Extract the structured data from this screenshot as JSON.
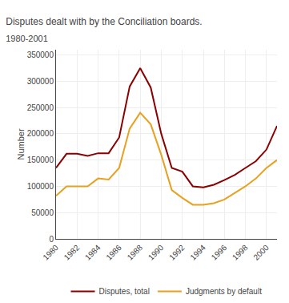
{
  "chart_data": {
    "type": "line",
    "title": "Disputes dealt with by the Conciliation boards.",
    "subtitle": "1980-2001",
    "ylabel": "Number",
    "x": [
      1980,
      1981,
      1982,
      1983,
      1984,
      1985,
      1986,
      1987,
      1988,
      1989,
      1990,
      1991,
      1992,
      1993,
      1994,
      1995,
      1996,
      1997,
      1998,
      1999,
      2000,
      2001
    ],
    "series": [
      {
        "name": "Disputes, total",
        "color": "#8B0000",
        "values": [
          135000,
          162000,
          162000,
          158000,
          163000,
          163000,
          193000,
          290000,
          325000,
          288000,
          200000,
          135000,
          128000,
          100000,
          98000,
          103000,
          112000,
          122000,
          135000,
          148000,
          170000,
          215000
        ]
      },
      {
        "name": "Judgments by default",
        "color": "#E8A020",
        "values": [
          82000,
          100000,
          100000,
          100000,
          115000,
          113000,
          135000,
          210000,
          240000,
          218000,
          160000,
          93000,
          78000,
          65000,
          65000,
          68000,
          75000,
          88000,
          100000,
          115000,
          135000,
          150000
        ]
      }
    ],
    "xlim": [
      1980,
      2001
    ],
    "xticks": [
      1980,
      1982,
      1984,
      1986,
      1988,
      1990,
      1992,
      1994,
      1996,
      1998,
      2000
    ],
    "ylim": [
      0,
      360000
    ],
    "yticks": [
      0,
      50000,
      100000,
      150000,
      200000,
      250000,
      300000,
      350000
    ],
    "grid": true,
    "legend": "bottom"
  }
}
